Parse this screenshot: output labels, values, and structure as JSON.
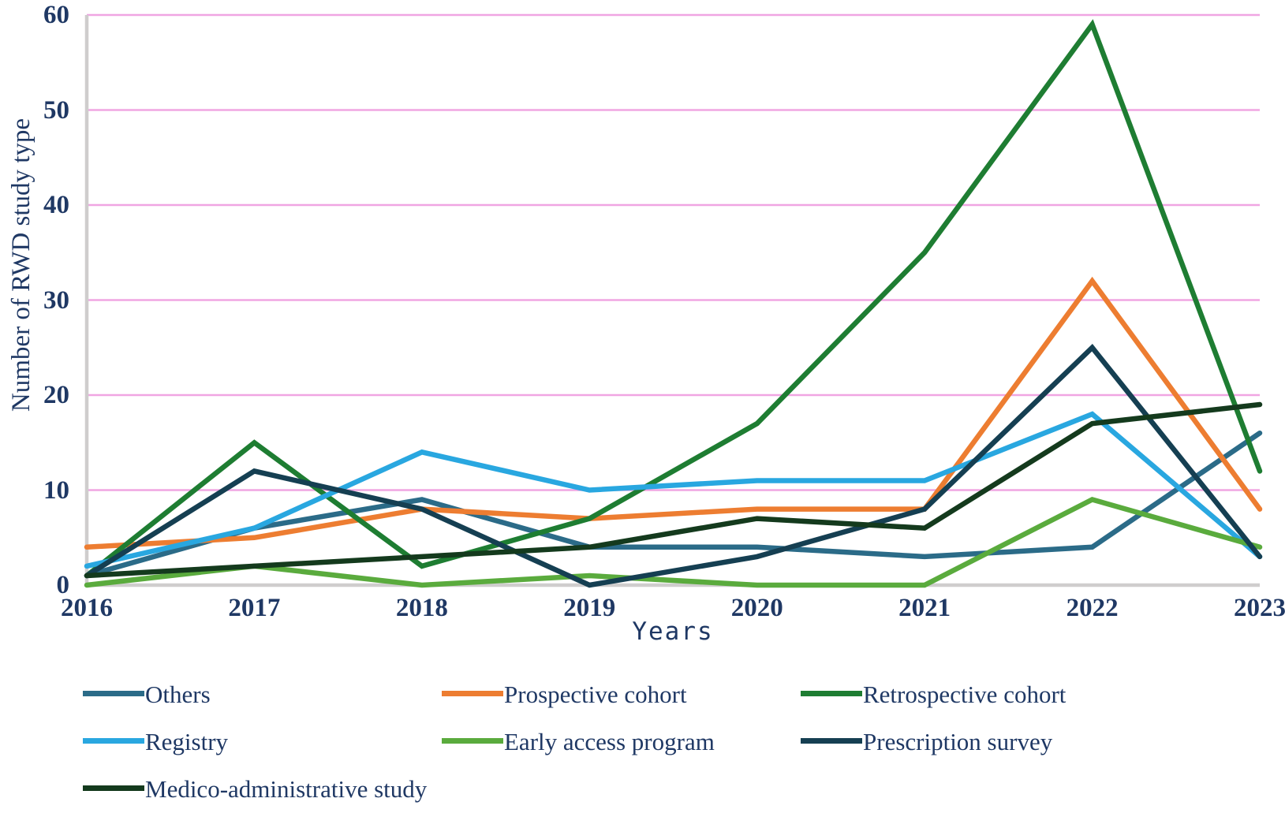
{
  "y_axis": {
    "title": "Number of RWD study type",
    "ticks": [
      0,
      10,
      20,
      30,
      40,
      50,
      60
    ]
  },
  "x_axis": {
    "title": "Years"
  },
  "chart_data": {
    "type": "line",
    "x": [
      "2016",
      "2017",
      "2018",
      "2019",
      "2020",
      "2021",
      "2022",
      "2023"
    ],
    "title": "",
    "xlabel": "Years",
    "ylabel": "Number of RWD study type",
    "ylim": [
      0,
      60
    ],
    "grid": "horizontal",
    "legend_position": "bottom",
    "series": [
      {
        "name": "Others",
        "color": "#2b6b88",
        "values": [
          1,
          6,
          9,
          4,
          4,
          3,
          4,
          16
        ]
      },
      {
        "name": "Prospective cohort",
        "color": "#ed7d31",
        "values": [
          4,
          5,
          8,
          7,
          8,
          8,
          32,
          8
        ]
      },
      {
        "name": "Retrospective cohort",
        "color": "#1e7d32",
        "values": [
          1,
          15,
          2,
          7,
          17,
          35,
          59,
          12
        ]
      },
      {
        "name": "Registry",
        "color": "#29a7e0",
        "values": [
          2,
          6,
          14,
          10,
          11,
          11,
          18,
          3
        ]
      },
      {
        "name": "Early access program",
        "color": "#5aab3d",
        "values": [
          0,
          2,
          0,
          1,
          0,
          0,
          9,
          4
        ]
      },
      {
        "name": "Prescription survey",
        "color": "#153f52",
        "values": [
          1,
          12,
          8,
          0,
          3,
          8,
          25,
          3
        ]
      },
      {
        "name": "Medico-administrative study",
        "color": "#143a1d",
        "values": [
          1,
          2,
          3,
          4,
          7,
          6,
          17,
          19
        ]
      }
    ]
  },
  "legend": {
    "columns": [
      [
        0,
        3,
        6
      ],
      [
        1,
        4
      ],
      [
        2,
        5
      ]
    ]
  },
  "colors": {
    "grid": "#f0a5e2",
    "axis": "#cfcdcd",
    "text": "#1f3864"
  }
}
